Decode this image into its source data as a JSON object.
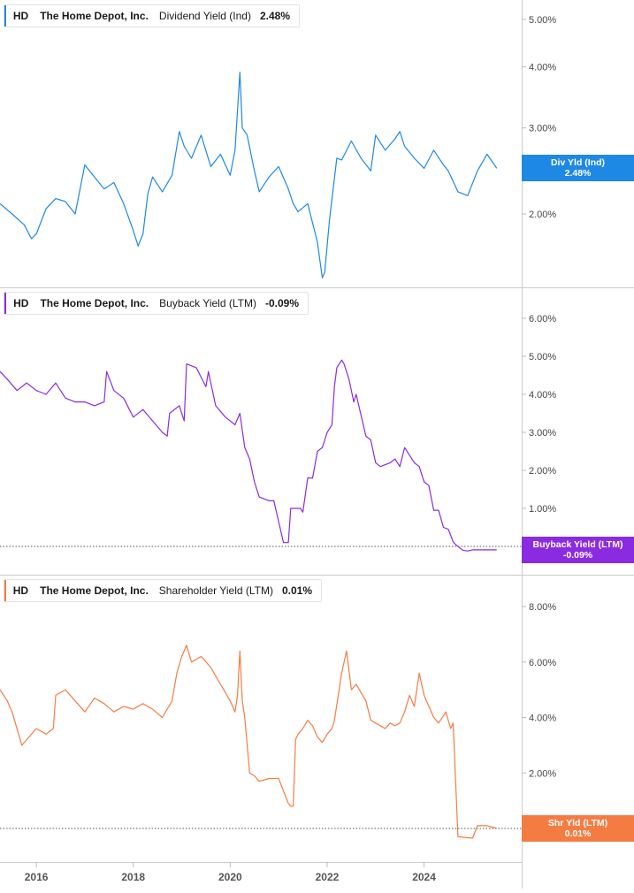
{
  "chart_data": [
    {
      "type": "line",
      "ticker": "HD",
      "company": "The Home Depot, Inc.",
      "series_name": "Dividend Yield (Ind)",
      "current_value_label": "2.48%",
      "badge_label": "Div Yld (Ind)",
      "badge_value": "2.48%",
      "color": "#1e88e5",
      "scale": "log",
      "ylim": [
        1.35,
        5.4
      ],
      "yticks": [
        2,
        3,
        4,
        5
      ],
      "ytick_labels": [
        "2.00%",
        "3.00%",
        "4.00%",
        "5.00%"
      ],
      "zero_line": false,
      "x": [
        2015.25,
        2015.5,
        2015.75,
        2015.9,
        2016.0,
        2016.2,
        2016.4,
        2016.6,
        2016.8,
        2017.0,
        2017.2,
        2017.4,
        2017.6,
        2017.8,
        2018.0,
        2018.1,
        2018.2,
        2018.3,
        2018.4,
        2018.6,
        2018.8,
        2018.95,
        2019.05,
        2019.2,
        2019.4,
        2019.6,
        2019.8,
        2020.0,
        2020.1,
        2020.2,
        2020.25,
        2020.35,
        2020.5,
        2020.6,
        2020.8,
        2021.0,
        2021.2,
        2021.3,
        2021.4,
        2021.6,
        2021.8,
        2021.9,
        2021.95,
        2022.05,
        2022.2,
        2022.3,
        2022.5,
        2022.7,
        2022.9,
        2023.0,
        2023.2,
        2023.4,
        2023.5,
        2023.6,
        2023.8,
        2024.0,
        2024.2,
        2024.4,
        2024.5,
        2024.7,
        2024.9,
        2025.1,
        2025.3,
        2025.5
      ],
      "y": [
        2.1,
        2.0,
        1.9,
        1.78,
        1.82,
        2.05,
        2.15,
        2.12,
        2.0,
        2.52,
        2.38,
        2.25,
        2.32,
        2.1,
        1.85,
        1.72,
        1.82,
        2.2,
        2.38,
        2.22,
        2.4,
        2.95,
        2.75,
        2.6,
        2.9,
        2.5,
        2.65,
        2.4,
        2.7,
        3.9,
        3.0,
        2.9,
        2.45,
        2.22,
        2.38,
        2.5,
        2.25,
        2.1,
        2.02,
        2.1,
        1.75,
        1.48,
        1.52,
        1.95,
        2.6,
        2.58,
        2.82,
        2.6,
        2.45,
        2.9,
        2.7,
        2.85,
        2.95,
        2.75,
        2.6,
        2.48,
        2.7,
        2.52,
        2.45,
        2.22,
        2.18,
        2.45,
        2.65,
        2.48
      ]
    },
    {
      "type": "line",
      "ticker": "HD",
      "company": "The Home Depot, Inc.",
      "series_name": "Buyback Yield (LTM)",
      "current_value_label": "-0.09%",
      "badge_label": "Buyback Yield (LTM)",
      "badge_value": "-0.09%",
      "color": "#8a2be2",
      "scale": "linear",
      "ylim": [
        -0.3,
        6.5
      ],
      "yticks": [
        1,
        2,
        3,
        4,
        5,
        6
      ],
      "ytick_labels": [
        "1.00%",
        "2.00%",
        "3.00%",
        "4.00%",
        "5.00%",
        "6.00%"
      ],
      "zero_line": true,
      "x": [
        2015.25,
        2015.4,
        2015.6,
        2015.8,
        2016.0,
        2016.2,
        2016.4,
        2016.6,
        2016.8,
        2017.0,
        2017.2,
        2017.4,
        2017.45,
        2017.6,
        2017.8,
        2018.0,
        2018.2,
        2018.4,
        2018.6,
        2018.7,
        2018.75,
        2018.95,
        2019.05,
        2019.1,
        2019.3,
        2019.5,
        2019.55,
        2019.7,
        2019.9,
        2020.1,
        2020.2,
        2020.3,
        2020.4,
        2020.5,
        2020.6,
        2020.8,
        2020.9,
        2021.1,
        2021.2,
        2021.25,
        2021.45,
        2021.5,
        2021.6,
        2021.7,
        2021.8,
        2021.9,
        2022.0,
        2022.1,
        2022.15,
        2022.2,
        2022.3,
        2022.35,
        2022.45,
        2022.55,
        2022.6,
        2022.8,
        2022.9,
        2023.0,
        2023.1,
        2023.3,
        2023.4,
        2023.5,
        2023.6,
        2023.7,
        2023.8,
        2023.9,
        2024.0,
        2024.1,
        2024.2,
        2024.3,
        2024.4,
        2024.5,
        2024.6,
        2024.65,
        2024.8,
        2024.9,
        2025.0,
        2025.1,
        2025.2,
        2025.3,
        2025.5
      ],
      "y": [
        4.6,
        4.4,
        4.1,
        4.3,
        4.1,
        4.0,
        4.3,
        3.9,
        3.8,
        3.8,
        3.7,
        3.8,
        4.6,
        4.1,
        3.9,
        3.4,
        3.6,
        3.3,
        3.0,
        2.9,
        3.5,
        3.7,
        3.3,
        4.8,
        4.7,
        4.2,
        4.6,
        3.7,
        3.4,
        3.2,
        3.5,
        2.6,
        2.3,
        1.7,
        1.3,
        1.2,
        1.2,
        0.1,
        0.1,
        1.0,
        1.0,
        0.9,
        1.8,
        1.8,
        2.5,
        2.6,
        3.0,
        3.2,
        4.2,
        4.7,
        4.9,
        4.8,
        4.4,
        3.8,
        4.0,
        2.9,
        2.8,
        2.2,
        2.1,
        2.2,
        2.3,
        2.1,
        2.6,
        2.4,
        2.2,
        2.1,
        1.7,
        1.6,
        0.95,
        0.95,
        0.5,
        0.45,
        0.12,
        0.05,
        -0.1,
        -0.12,
        -0.09,
        -0.09,
        -0.09,
        -0.09,
        -0.09
      ]
    },
    {
      "type": "line",
      "ticker": "HD",
      "company": "The Home Depot, Inc.",
      "series_name": "Shareholder Yield (LTM)",
      "current_value_label": "0.01%",
      "badge_label": "Shr Yld (LTM)",
      "badge_value": "0.01%",
      "color": "#f47c42",
      "scale": "linear",
      "ylim": [
        -0.3,
        9.0
      ],
      "yticks": [
        0,
        2,
        4,
        6,
        8
      ],
      "ytick_labels": [
        "0.00%",
        "2.00%",
        "4.00%",
        "6.00%",
        "8.00%"
      ],
      "zero_line": true,
      "x": [
        2015.25,
        2015.4,
        2015.5,
        2015.7,
        2015.85,
        2016.0,
        2016.2,
        2016.35,
        2016.4,
        2016.6,
        2016.8,
        2017.0,
        2017.2,
        2017.4,
        2017.6,
        2017.8,
        2018.0,
        2018.2,
        2018.4,
        2018.6,
        2018.8,
        2018.9,
        2019.0,
        2019.1,
        2019.2,
        2019.4,
        2019.6,
        2019.8,
        2020.0,
        2020.1,
        2020.15,
        2020.2,
        2020.25,
        2020.3,
        2020.4,
        2020.5,
        2020.6,
        2020.8,
        2021.0,
        2021.2,
        2021.25,
        2021.3,
        2021.35,
        2021.4,
        2021.5,
        2021.6,
        2021.7,
        2021.8,
        2021.9,
        2022.0,
        2022.1,
        2022.15,
        2022.3,
        2022.4,
        2022.5,
        2022.6,
        2022.8,
        2022.9,
        2023.0,
        2023.2,
        2023.3,
        2023.4,
        2023.5,
        2023.6,
        2023.7,
        2023.8,
        2023.9,
        2024.0,
        2024.2,
        2024.3,
        2024.45,
        2024.55,
        2024.6,
        2024.7,
        2025.0,
        2025.1,
        2025.3,
        2025.5
      ],
      "y": [
        5.0,
        4.6,
        4.2,
        3.0,
        3.3,
        3.6,
        3.4,
        3.6,
        4.8,
        5.0,
        4.6,
        4.2,
        4.7,
        4.5,
        4.2,
        4.4,
        4.3,
        4.5,
        4.3,
        4.0,
        4.6,
        5.6,
        6.2,
        6.6,
        6.0,
        6.2,
        5.8,
        5.2,
        4.6,
        4.2,
        4.8,
        6.4,
        4.6,
        4.0,
        2.0,
        1.9,
        1.7,
        1.8,
        1.8,
        0.9,
        0.8,
        0.8,
        3.2,
        3.4,
        3.6,
        3.9,
        3.7,
        3.3,
        3.1,
        3.4,
        3.6,
        3.9,
        5.6,
        6.4,
        5.0,
        5.2,
        4.6,
        3.9,
        3.8,
        3.6,
        3.8,
        3.7,
        3.8,
        4.2,
        4.8,
        4.4,
        5.6,
        4.8,
        4.0,
        3.8,
        4.2,
        3.6,
        3.8,
        -0.3,
        -0.35,
        0.1,
        0.1,
        0.01
      ]
    }
  ],
  "x_axis": {
    "range": [
      2015.25,
      2025.65
    ],
    "ticks": [
      2016,
      2018,
      2020,
      2022,
      2024
    ],
    "tick_labels": [
      "2016",
      "2018",
      "2020",
      "2022",
      "2024"
    ]
  }
}
